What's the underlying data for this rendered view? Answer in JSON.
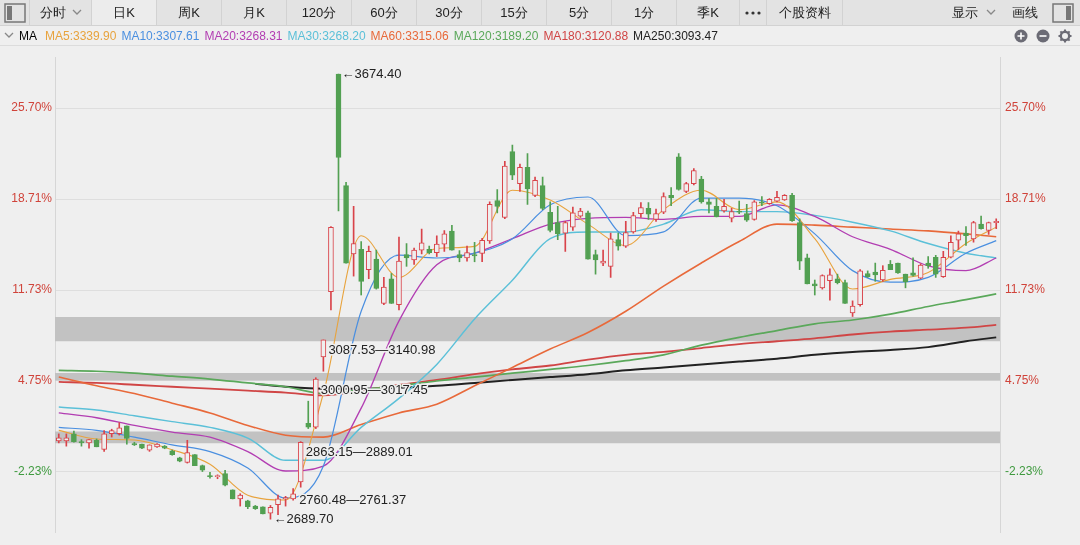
{
  "chart_data": {
    "type": "candlestick",
    "annotations": [
      "分时",
      "日K",
      "周K",
      "月K",
      "120分",
      "60分",
      "30分",
      "15分",
      "5分",
      "1分",
      "季K",
      "个股资料",
      "显示",
      "画线",
      "←3674.40",
      "←2689.70",
      "2760.48—2761.37",
      {
        "text": "3087.53—3140.98",
        "y": 7.8
      },
      {
        "text": "3000.95—3017.45",
        "y": 4.78
      },
      {
        "text": "2863.15—2889.01",
        "y": -0.03
      }
    ],
    "legend_title": "MA",
    "legend": "top left",
    "grid": "y",
    "categories": [
      null,
      null,
      null,
      null,
      null,
      null,
      null,
      null,
      null,
      null,
      null,
      null,
      null,
      null,
      null,
      null,
      null,
      null,
      null,
      null,
      null,
      null,
      null,
      null,
      null,
      null,
      null,
      null,
      null,
      null,
      null,
      null,
      null,
      null,
      null,
      null,
      null,
      null,
      null,
      null,
      null,
      null,
      null,
      null,
      null,
      null,
      null,
      null,
      null,
      null,
      null,
      null,
      null,
      null,
      null,
      null,
      null,
      null,
      null,
      null,
      null,
      null,
      null,
      null,
      null,
      null,
      null,
      null,
      null,
      null,
      null,
      null,
      null,
      null,
      null,
      null,
      null,
      null,
      null,
      null,
      null,
      null,
      null,
      null,
      null,
      null,
      null,
      null,
      null,
      null,
      null,
      null,
      null,
      null,
      null,
      null,
      null,
      null,
      null,
      null,
      null,
      null,
      null,
      null,
      null,
      null,
      null,
      null,
      null,
      null,
      null,
      null,
      null,
      null,
      null,
      null,
      null,
      null,
      null,
      null,
      null,
      null,
      null,
      null,
      null
    ],
    "ohlc": [
      [
        0.15,
        0.69,
        0.0,
        0.39
      ],
      [
        0.15,
        0.69,
        -0.25,
        0.39
      ],
      [
        0.7,
        0.9,
        0.05,
        0.1
      ],
      [
        0.1,
        0.25,
        -0.25,
        0.0
      ],
      [
        0.0,
        0.25,
        -0.4,
        0.25
      ],
      [
        0.2,
        0.3,
        -0.3,
        -0.3
      ],
      [
        -0.5,
        0.95,
        -0.65,
        0.7
      ],
      [
        0.7,
        1.05,
        0.45,
        0.95
      ],
      [
        0.7,
        1.55,
        0.6,
        1.15
      ],
      [
        1.3,
        1.3,
        -0.1,
        0.35
      ],
      [
        -0.05,
        0.05,
        -0.2,
        -0.15
      ],
      [
        -0.1,
        -0.1,
        -0.45,
        -0.4
      ],
      [
        -0.55,
        -0.15,
        -0.65,
        -0.15
      ],
      [
        -0.3,
        -0.05,
        -0.35,
        -0.1
      ],
      [
        -0.25,
        -0.2,
        -0.45,
        -0.4
      ],
      [
        -0.6,
        -0.55,
        -0.95,
        -0.9
      ],
      [
        -1.15,
        -1.1,
        -1.45,
        -1.4
      ],
      [
        -1.5,
        0.2,
        -1.55,
        -0.75
      ],
      [
        -0.9,
        -0.9,
        -1.75,
        -1.75
      ],
      [
        -1.75,
        -1.7,
        -2.2,
        -2.1
      ],
      [
        -2.5,
        -2.25,
        -2.7,
        -2.6
      ],
      [
        -2.6,
        -2.45,
        -2.75,
        -2.5
      ],
      [
        -2.35,
        -2.1,
        -3.3,
        -3.25
      ],
      [
        -3.6,
        -3.6,
        -4.3,
        -4.3
      ],
      [
        -4.3,
        -3.9,
        -4.85,
        -4.0
      ],
      [
        -4.45,
        -4.4,
        -5.05,
        -4.9
      ],
      [
        -4.85,
        -4.8,
        -5.1,
        -5.05
      ],
      [
        -4.9,
        -4.9,
        -5.45,
        -5.45
      ],
      [
        -5.4,
        -4.8,
        -5.85,
        -4.95
      ],
      [
        -4.75,
        -4.0,
        -5.5,
        -4.3
      ],
      [
        -4.3,
        -4.1,
        -4.85,
        -4.2
      ],
      [
        -4.3,
        -3.5,
        -4.4,
        -3.9
      ],
      [
        -3.0,
        0.1,
        -3.4,
        0.05
      ],
      [
        1.5,
        3.2,
        1.1,
        1.2
      ],
      [
        1.2,
        5.0,
        1.1,
        4.9
      ],
      [
        6.6,
        7.9,
        5.5,
        7.9
      ],
      [
        11.6,
        16.6,
        10.2,
        16.55
      ],
      [
        28.3,
        28.3,
        17.8,
        21.9
      ],
      [
        19.75,
        20.0,
        13.8,
        13.8
      ],
      [
        14.5,
        18.15,
        12.8,
        15.3
      ],
      [
        14.85,
        15.45,
        11.35,
        12.4
      ],
      [
        13.3,
        15.1,
        12.6,
        14.7
      ],
      [
        14.1,
        14.8,
        11.8,
        11.85
      ],
      [
        10.7,
        12.7,
        10.6,
        11.95
      ],
      [
        12.6,
        13.0,
        10.7,
        10.7
      ],
      [
        10.6,
        15.8,
        10.2,
        13.95
      ],
      [
        14.45,
        15.3,
        13.55,
        14.2
      ],
      [
        14.05,
        14.95,
        13.7,
        14.8
      ],
      [
        14.8,
        16.4,
        14.5,
        15.35
      ],
      [
        14.85,
        15.1,
        14.5,
        14.6
      ],
      [
        14.6,
        15.9,
        14.3,
        15.25
      ],
      [
        15.25,
        16.3,
        14.7,
        16.05
      ],
      [
        16.25,
        16.7,
        14.8,
        14.8
      ],
      [
        14.45,
        14.75,
        13.9,
        14.2
      ],
      [
        14.2,
        15.1,
        13.95,
        14.6
      ],
      [
        14.45,
        15.4,
        13.9,
        14.35
      ],
      [
        14.55,
        15.7,
        13.9,
        15.55
      ],
      [
        15.5,
        18.5,
        15.3,
        18.3
      ],
      [
        18.6,
        19.45,
        17.65,
        18.15
      ],
      [
        17.3,
        21.6,
        17.2,
        21.25
      ],
      [
        22.35,
        22.85,
        20.2,
        20.55
      ],
      [
        19.9,
        21.4,
        19.3,
        21.15
      ],
      [
        21.15,
        22.2,
        18.3,
        19.5
      ],
      [
        19.0,
        20.4,
        18.9,
        20.15
      ],
      [
        19.75,
        20.4,
        17.9,
        18.0
      ],
      [
        17.7,
        18.5,
        16.2,
        16.3
      ],
      [
        16.9,
        18.15,
        15.6,
        16.05
      ],
      [
        16.1,
        17.0,
        14.7,
        16.9
      ],
      [
        16.55,
        18.1,
        16.3,
        17.65
      ],
      [
        17.4,
        18.0,
        17.3,
        17.8
      ],
      [
        17.65,
        17.8,
        14.1,
        14.1
      ],
      [
        14.45,
        14.8,
        12.95,
        14.05
      ],
      [
        13.8,
        14.8,
        13.6,
        13.95
      ],
      [
        13.55,
        16.1,
        12.7,
        15.67
      ],
      [
        15.6,
        16.1,
        14.8,
        15.1
      ],
      [
        15.1,
        17.0,
        15.0,
        16.15
      ],
      [
        16.2,
        17.7,
        16.1,
        17.45
      ],
      [
        17.6,
        18.45,
        17.3,
        18.05
      ],
      [
        18.0,
        18.45,
        17.15,
        17.55
      ],
      [
        17.15,
        17.95,
        17.0,
        17.6
      ],
      [
        17.7,
        19.2,
        17.6,
        18.9
      ],
      [
        19.0,
        19.6,
        18.2,
        18.8
      ],
      [
        21.95,
        22.2,
        19.4,
        19.45
      ],
      [
        19.3,
        20.0,
        19.2,
        19.9
      ],
      [
        19.9,
        21.05,
        19.8,
        20.9
      ],
      [
        20.25,
        20.45,
        18.4,
        18.5
      ],
      [
        18.5,
        18.75,
        17.65,
        18.3
      ],
      [
        18.15,
        18.75,
        17.35,
        17.35
      ],
      [
        17.8,
        18.7,
        17.7,
        18.15
      ],
      [
        17.25,
        18.0,
        16.95,
        17.75
      ],
      [
        17.75,
        18.55,
        17.6,
        17.7
      ],
      [
        17.6,
        18.3,
        17.0,
        17.1
      ],
      [
        17.15,
        18.6,
        17.1,
        18.5
      ],
      [
        18.5,
        18.9,
        18.2,
        18.4
      ],
      [
        18.35,
        18.75,
        18.3,
        18.7
      ],
      [
        18.55,
        19.3,
        18.5,
        18.85
      ],
      [
        18.65,
        19.05,
        18.6,
        19.0
      ],
      [
        19.0,
        19.15,
        17.0,
        17.05
      ],
      [
        16.9,
        17.2,
        13.3,
        13.95
      ],
      [
        14.2,
        14.5,
        12.2,
        12.2
      ],
      [
        12.2,
        12.5,
        11.35,
        12.05
      ],
      [
        11.9,
        12.9,
        11.8,
        12.85
      ],
      [
        12.45,
        13.35,
        10.95,
        12.9
      ],
      [
        12.6,
        12.95,
        12.2,
        12.3
      ],
      [
        12.3,
        12.5,
        10.7,
        10.7
      ],
      [
        9.97,
        10.9,
        9.7,
        10.5
      ],
      [
        10.6,
        13.3,
        10.5,
        13.2
      ],
      [
        13.0,
        13.2,
        12.7,
        12.75
      ],
      [
        13.1,
        13.8,
        12.4,
        12.9
      ],
      [
        12.5,
        13.6,
        12.4,
        13.25
      ],
      [
        13.7,
        14.0,
        13.3,
        13.3
      ],
      [
        13.8,
        13.8,
        13.0,
        13.05
      ],
      [
        12.95,
        12.95,
        11.9,
        12.35
      ],
      [
        13.05,
        14.2,
        12.8,
        12.85
      ],
      [
        12.65,
        13.75,
        12.6,
        13.65
      ],
      [
        13.8,
        14.3,
        13.4,
        13.6
      ],
      [
        14.25,
        14.4,
        12.7,
        12.95
      ],
      [
        12.75,
        14.7,
        12.7,
        14.25
      ],
      [
        14.25,
        15.9,
        14.2,
        15.4
      ],
      [
        15.55,
        16.25,
        14.85,
        16.05
      ],
      [
        16.1,
        16.6,
        15.15,
        15.9
      ],
      [
        15.65,
        17.0,
        15.4,
        16.9
      ],
      [
        16.8,
        17.4,
        16.4,
        16.45
      ],
      [
        16.3,
        16.95,
        16.0,
        16.9
      ],
      [
        16.9,
        17.2,
        16.45,
        17.0
      ]
    ],
    "colors": [
      "#d9434a",
      "#d9434a",
      "#52a052",
      "#52a052",
      "#d9434a",
      "#52a052",
      "#d9434a",
      "#d9434a",
      "#d9434a",
      "#52a052",
      "#52a052",
      "#52a052",
      "#d9434a",
      "#d9434a",
      "#52a052",
      "#52a052",
      "#52a052",
      "#d9434a",
      "#52a052",
      "#52a052",
      "#52a052",
      "#d9434a",
      "#52a052",
      "#52a052",
      "#d9434a",
      "#52a052",
      "#52a052",
      "#52a052",
      "#d9434a",
      "#d9434a",
      "#d9434a",
      "#d9434a",
      "#d9434a",
      "#52a052",
      "#d9434a",
      "#d9434a",
      "#d9434a",
      "#52a052",
      "#52a052",
      "#d9434a",
      "#52a052",
      "#d9434a",
      "#52a052",
      "#d9434a",
      "#52a052",
      "#d9434a",
      "#52a052",
      "#d9434a",
      "#d9434a",
      "#52a052",
      "#d9434a",
      "#d9434a",
      "#52a052",
      "#52a052",
      "#d9434a",
      "#52a052",
      "#d9434a",
      "#d9434a",
      "#52a052",
      "#d9434a",
      "#52a052",
      "#d9434a",
      "#52a052",
      "#d9434a",
      "#52a052",
      "#52a052",
      "#52a052",
      "#d9434a",
      "#d9434a",
      "#d9434a",
      "#52a052",
      "#52a052",
      "#d9434a",
      "#d9434a",
      "#52a052",
      "#d9434a",
      "#d9434a",
      "#d9434a",
      "#52a052",
      "#d9434a",
      "#d9434a",
      "#52a052",
      "#52a052",
      "#d9434a",
      "#d9434a",
      "#52a052",
      "#52a052",
      "#52a052",
      "#d9434a",
      "#d9434a",
      "#52a052",
      "#52a052",
      "#d9434a",
      "#52a052",
      "#d9434a",
      "#d9434a",
      "#d9434a",
      "#52a052",
      "#52a052",
      "#52a052",
      "#52a052",
      "#d9434a",
      "#d9434a",
      "#52a052",
      "#52a052",
      "#d9434a",
      "#d9434a",
      "#52a052",
      "#52a052",
      "#d9434a",
      "#52a052",
      "#52a052",
      "#52a052",
      "#52a052",
      "#d9434a",
      "#52a052",
      "#52a052",
      "#d9434a",
      "#d9434a",
      "#d9434a",
      "#52a052",
      "#d9434a",
      "#52a052",
      "#d9434a",
      "#d9434a"
    ],
    "series": [
      {
        "type": "line",
        "name": "MA5:3339.90",
        "color": "#e8a33d",
        "values": [
          0.96,
          null,
          null,
          null,
          null,
          0.3,
          null,
          null,
          null,
          null,
          0.22,
          null,
          null,
          null,
          null,
          -0.52,
          null,
          null,
          null,
          null,
          -1.64,
          null,
          null,
          null,
          null,
          -4.01,
          null,
          null,
          null,
          null,
          -4.38,
          null,
          null,
          null,
          null,
          3.79,
          null,
          null,
          null,
          null,
          15.9,
          null,
          null,
          null,
          null,
          12.7,
          null,
          null,
          null,
          null,
          14.93,
          null,
          null,
          null,
          null,
          15.08,
          null,
          null,
          null,
          null,
          19.39,
          null,
          null,
          null,
          null,
          18.64,
          null,
          null,
          null,
          null,
          16.79,
          null,
          null,
          null,
          null,
          15.15,
          null,
          null,
          null,
          null,
          17.9,
          null,
          null,
          null,
          null,
          19.39,
          null,
          null,
          null,
          null,
          17.9,
          null,
          null,
          null,
          null,
          18.5,
          null,
          null,
          null,
          null,
          15.67,
          null,
          null,
          null,
          null,
          11.81,
          null,
          null,
          null,
          null,
          12.55,
          null,
          null,
          null,
          null,
          13.07,
          null,
          null,
          null,
          null,
          15.3,
          null,
          null,
          null,
          16.56
        ]
      },
      {
        "type": "line",
        "name": "MA10:3307.61",
        "color": "#4a8fe0",
        "values": [
          1.19,
          null,
          null,
          null,
          null,
          0.96,
          null,
          null,
          null,
          null,
          0.44,
          null,
          null,
          null,
          null,
          -0.15,
          null,
          null,
          null,
          null,
          -0.67,
          null,
          null,
          null,
          null,
          -1.93,
          null,
          null,
          null,
          null,
          -4.23,
          null,
          null,
          null,
          null,
          -1.78,
          null,
          null,
          null,
          null,
          10.1,
          null,
          null,
          null,
          null,
          14.41,
          null,
          null,
          null,
          null,
          14.19,
          null,
          null,
          null,
          null,
          14.56,
          null,
          null,
          null,
          null,
          15.67,
          null,
          null,
          null,
          null,
          18.27,
          null,
          null,
          null,
          null,
          18.87,
          null,
          null,
          null,
          null,
          15.9,
          null,
          null,
          null,
          null,
          16.19,
          null,
          null,
          null,
          null,
          18.79,
          null,
          null,
          null,
          null,
          18.79,
          null,
          null,
          null,
          null,
          18.2,
          null,
          null,
          null,
          null,
          16.04,
          null,
          null,
          null,
          null,
          13.22,
          null,
          null,
          null,
          null,
          12.33,
          null,
          null,
          null,
          null,
          12.7,
          null,
          null,
          null,
          null,
          14.56,
          null,
          null,
          null,
          15.52
        ]
      },
      {
        "type": "line",
        "name": "MA20:3268.31",
        "color": "#b23db2",
        "values": [
          2.3,
          null,
          null,
          null,
          null,
          1.93,
          null,
          null,
          null,
          null,
          1.34,
          null,
          null,
          null,
          null,
          0.82,
          null,
          null,
          null,
          null,
          0.44,
          null,
          null,
          null,
          null,
          -0.67,
          null,
          null,
          null,
          null,
          -2.16,
          null,
          null,
          null,
          null,
          -1.78,
          null,
          null,
          null,
          null,
          2.67,
          null,
          null,
          null,
          null,
          9.36,
          null,
          null,
          null,
          null,
          13.67,
          null,
          null,
          null,
          null,
          14.56,
          null,
          null,
          null,
          null,
          15.67,
          null,
          null,
          null,
          null,
          16.79,
          null,
          null,
          null,
          null,
          17.23,
          null,
          null,
          null,
          null,
          17.31,
          null,
          null,
          null,
          null,
          17.16,
          null,
          null,
          null,
          null,
          17.38,
          null,
          null,
          null,
          null,
          17.38,
          null,
          null,
          null,
          null,
          18.27,
          null,
          null,
          null,
          null,
          17.38,
          null,
          null,
          null,
          null,
          15.82,
          null,
          null,
          null,
          null,
          14.86,
          null,
          null,
          null,
          null,
          13.59,
          null,
          null,
          null,
          null,
          13.22,
          null,
          null,
          null,
          14.19
        ]
      },
      {
        "type": "line",
        "name": "MA30:3268.20",
        "color": "#5bc0d8",
        "values": [
          2.75,
          null,
          null,
          null,
          null,
          2.52,
          null,
          null,
          null,
          null,
          2.08,
          null,
          null,
          null,
          null,
          1.63,
          null,
          null,
          null,
          null,
          1.19,
          null,
          null,
          null,
          null,
          0.37,
          null,
          null,
          null,
          null,
          -1.34,
          null,
          null,
          null,
          null,
          -1.34,
          null,
          null,
          null,
          null,
          1.19,
          null,
          null,
          null,
          null,
          3.42,
          null,
          null,
          null,
          null,
          6.02,
          null,
          null,
          null,
          null,
          9.51,
          null,
          null,
          null,
          null,
          12.48,
          null,
          null,
          null,
          null,
          15.67,
          null,
          null,
          null,
          null,
          16.19,
          null,
          null,
          null,
          null,
          16.19,
          null,
          null,
          null,
          null,
          16.79,
          null,
          null,
          null,
          null,
          17.9,
          null,
          null,
          null,
          null,
          17.75,
          null,
          null,
          null,
          null,
          17.75,
          null,
          null,
          null,
          null,
          17.46,
          null,
          null,
          null,
          null,
          16.94,
          null,
          null,
          null,
          null,
          16.27,
          null,
          null,
          null,
          null,
          15.3,
          null,
          null,
          null,
          null,
          14.56,
          null,
          null,
          null,
          14.19
        ]
      },
      {
        "type": "line",
        "name": "MA60:3315.06",
        "color": "#e8693a",
        "values": [
          5.05,
          null,
          null,
          null,
          null,
          4.38,
          null,
          null,
          null,
          null,
          3.79,
          null,
          null,
          null,
          null,
          3.05,
          null,
          null,
          null,
          null,
          2.3,
          null,
          null,
          null,
          null,
          1.34,
          null,
          null,
          null,
          null,
          0.59,
          null,
          null,
          null,
          null,
          0.44,
          null,
          null,
          null,
          null,
          1.41,
          null,
          null,
          null,
          null,
          2.3,
          null,
          null,
          null,
          null,
          2.97,
          null,
          null,
          null,
          null,
          4.38,
          null,
          null,
          null,
          null,
          5.79,
          null,
          null,
          null,
          null,
          7.2,
          null,
          null,
          null,
          null,
          8.47,
          null,
          null,
          null,
          null,
          10.1,
          null,
          null,
          null,
          null,
          12.03,
          null,
          null,
          null,
          null,
          13.81,
          null,
          null,
          null,
          null,
          15.45,
          null,
          null,
          null,
          null,
          16.79,
          null,
          null,
          null,
          null,
          16.71,
          null,
          null,
          null,
          null,
          16.56,
          null,
          null,
          null,
          null,
          16.41,
          null,
          null,
          null,
          null,
          16.27,
          null,
          null,
          null,
          null,
          16.04,
          null,
          null,
          null,
          15.82
        ]
      },
      {
        "type": "line",
        "name": "MA120:3189.20",
        "color": "#5aa85a",
        "values": [
          5.57,
          null,
          null,
          null,
          null,
          5.5,
          null,
          null,
          null,
          null,
          5.35,
          null,
          null,
          null,
          null,
          5.12,
          null,
          null,
          null,
          null,
          4.9,
          null,
          null,
          null,
          null,
          4.6,
          null,
          null,
          null,
          null,
          4.31,
          null,
          null,
          null,
          null,
          3.79,
          null,
          null,
          null,
          null,
          4.08,
          null,
          null,
          null,
          null,
          4.38,
          null,
          null,
          null,
          null,
          4.75,
          null,
          null,
          null,
          null,
          5.05,
          null,
          null,
          null,
          null,
          5.35,
          null,
          null,
          null,
          null,
          5.64,
          null,
          null,
          null,
          null,
          5.94,
          null,
          null,
          null,
          null,
          6.31,
          null,
          null,
          null,
          null,
          6.76,
          null,
          null,
          null,
          null,
          7.5,
          null,
          null,
          null,
          null,
          8.1,
          null,
          null,
          null,
          null,
          8.62,
          null,
          null,
          null,
          null,
          9.14,
          null,
          null,
          null,
          null,
          9.43,
          null,
          null,
          null,
          null,
          9.88,
          null,
          null,
          null,
          null,
          10.47,
          null,
          null,
          null,
          null,
          10.99,
          null,
          null,
          null,
          11.44
        ]
      },
      {
        "type": "line",
        "name": "MA180:3120.88",
        "color": "#d04545",
        "values": [
          4.68,
          null,
          null,
          null,
          null,
          4.6,
          null,
          null,
          null,
          null,
          4.46,
          null,
          null,
          null,
          null,
          4.31,
          null,
          null,
          null,
          null,
          4.16,
          null,
          null,
          null,
          null,
          4.01,
          null,
          null,
          null,
          null,
          3.86,
          null,
          null,
          null,
          null,
          3.64,
          null,
          null,
          null,
          null,
          4.01,
          null,
          null,
          null,
          null,
          4.46,
          null,
          null,
          null,
          null,
          4.83,
          null,
          null,
          null,
          null,
          5.27,
          null,
          null,
          null,
          null,
          5.64,
          null,
          null,
          null,
          null,
          5.94,
          null,
          null,
          null,
          null,
          6.39,
          null,
          null,
          null,
          null,
          6.76,
          null,
          null,
          null,
          null,
          6.98,
          null,
          null,
          null,
          null,
          7.28,
          null,
          null,
          null,
          null,
          7.58,
          null,
          null,
          null,
          null,
          7.8,
          null,
          null,
          null,
          null,
          8.02,
          null,
          null,
          null,
          null,
          8.32,
          null,
          null,
          null,
          null,
          8.54,
          null,
          null,
          null,
          null,
          8.69,
          null,
          null,
          null,
          null,
          8.84,
          null,
          null,
          null,
          9.06
        ]
      },
      {
        "type": "line",
        "name": "MA250:3093.47",
        "color": "#222222",
        "values": [
          null,
          null,
          null,
          null,
          null,
          null,
          null,
          null,
          null,
          null,
          null,
          null,
          null,
          null,
          null,
          null,
          null,
          null,
          null,
          null,
          null,
          null,
          null,
          null,
          null,
          null,
          4.53,
          null,
          null,
          null,
          4.31,
          null,
          null,
          null,
          null,
          4.16,
          null,
          null,
          null,
          null,
          4.16,
          null,
          null,
          null,
          null,
          4.23,
          null,
          null,
          null,
          null,
          4.38,
          null,
          null,
          null,
          null,
          4.6,
          null,
          null,
          null,
          null,
          4.83,
          null,
          null,
          null,
          null,
          5.05,
          null,
          null,
          null,
          null,
          5.27,
          null,
          null,
          null,
          null,
          5.57,
          null,
          null,
          null,
          null,
          5.79,
          null,
          null,
          null,
          null,
          6.02,
          null,
          null,
          null,
          null,
          6.24,
          null,
          null,
          null,
          null,
          6.46,
          null,
          null,
          null,
          null,
          6.76,
          null,
          null,
          null,
          null,
          6.98,
          null,
          null,
          null,
          null,
          7.13,
          null,
          null,
          null,
          null,
          7.35,
          null,
          null,
          null,
          null,
          7.8,
          null,
          null,
          null,
          8.1
        ]
      }
    ],
    "bands": [
      {
        "axis": "y",
        "from": 7.8,
        "to": 9.67,
        "color": "#c2c2c2"
      },
      {
        "axis": "y",
        "from": 4.78,
        "to": 5.36,
        "color": "#c2c2c2"
      },
      {
        "axis": "y",
        "from": -0.03,
        "to": 0.87,
        "color": "#c2c2c2"
      }
    ],
    "ylim": [
      -6.9,
      29.6
    ],
    "yticks": [
      {
        "value": -2.23,
        "label": "-2.23%"
      },
      {
        "value": 4.75,
        "label": "4.75%"
      },
      {
        "value": 11.73,
        "label": "11.73%"
      },
      {
        "value": 18.71,
        "label": "18.71%"
      },
      {
        "value": 25.7,
        "label": "25.70%"
      }
    ],
    "y2lim": [
      -6.9,
      29.6
    ],
    "y2ticks": [
      {
        "value": -2.23,
        "label": "-2.23%"
      },
      {
        "value": 4.75,
        "label": "4.75%"
      },
      {
        "value": 11.73,
        "label": "11.73%"
      },
      {
        "value": 18.71,
        "label": "18.71%"
      },
      {
        "value": 25.7,
        "label": "25.70%"
      }
    ]
  }
}
